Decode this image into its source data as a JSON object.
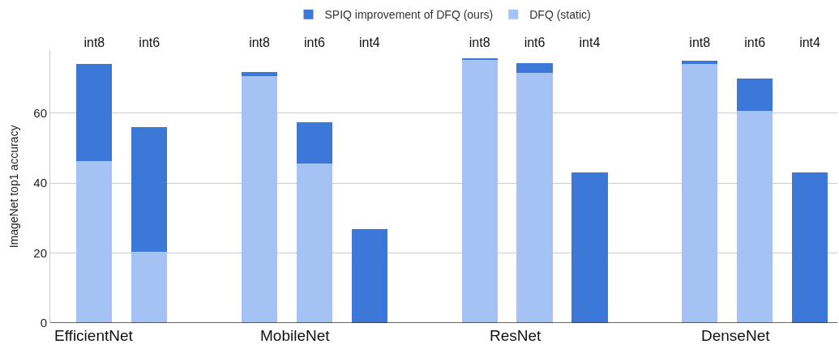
{
  "chart_data": {
    "type": "bar",
    "stacked": true,
    "ylabel": "ImageNet top1 accuracy",
    "categories": [
      "int8",
      "int6",
      null,
      "int8",
      "int6",
      "int4",
      null,
      "int8",
      "int6",
      "int4",
      null,
      "int8",
      "int6",
      "int4"
    ],
    "series": [
      {
        "name": "DFQ (static)",
        "color": "#a4c2f4",
        "values": [
          46.4,
          20.3,
          null,
          70.5,
          45.7,
          null,
          null,
          75.4,
          71.5,
          null,
          null,
          74.1,
          60.7,
          null
        ]
      },
      {
        "name": "SPIQ improvement of DFQ (ours)",
        "color": "#3c78d8",
        "values": [
          27.7,
          35.8,
          null,
          1.3,
          11.6,
          26.9,
          null,
          0.4,
          2.9,
          43.0,
          null,
          1.0,
          9.3,
          43.0
        ]
      }
    ],
    "ylim": [
      0,
      78
    ],
    "yticks": [
      0,
      20,
      40,
      60
    ],
    "grid": "y",
    "legend": "top",
    "annotations": [
      "EfficientNet",
      "MobileNet",
      "ResNet",
      "DenseNet"
    ]
  }
}
